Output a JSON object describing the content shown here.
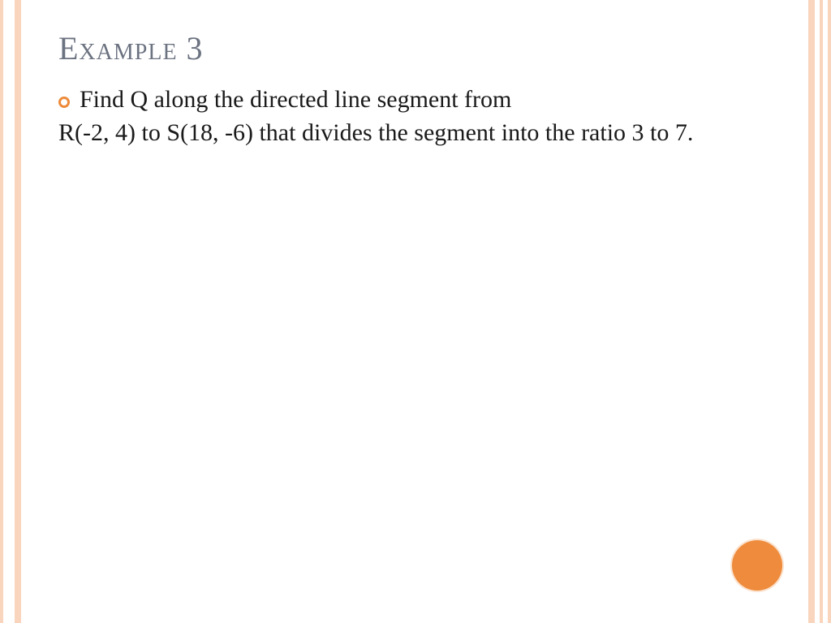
{
  "slide": {
    "title": "Example 3",
    "bullet_line": "Find Q along the directed line segment from",
    "continuation": "R(-2, 4) to S(18, -6) that divides the segment into the ratio 3 to 7."
  },
  "style": {
    "title_color": "#6b7280",
    "title_fontsize": 40,
    "body_fontsize": 30,
    "body_color": "#1a1a1a",
    "bullet_ring_color": "#ed8a3a",
    "border_color": "#f8d5bc",
    "circle_color": "#ee8b3c",
    "background": "#ffffff"
  }
}
